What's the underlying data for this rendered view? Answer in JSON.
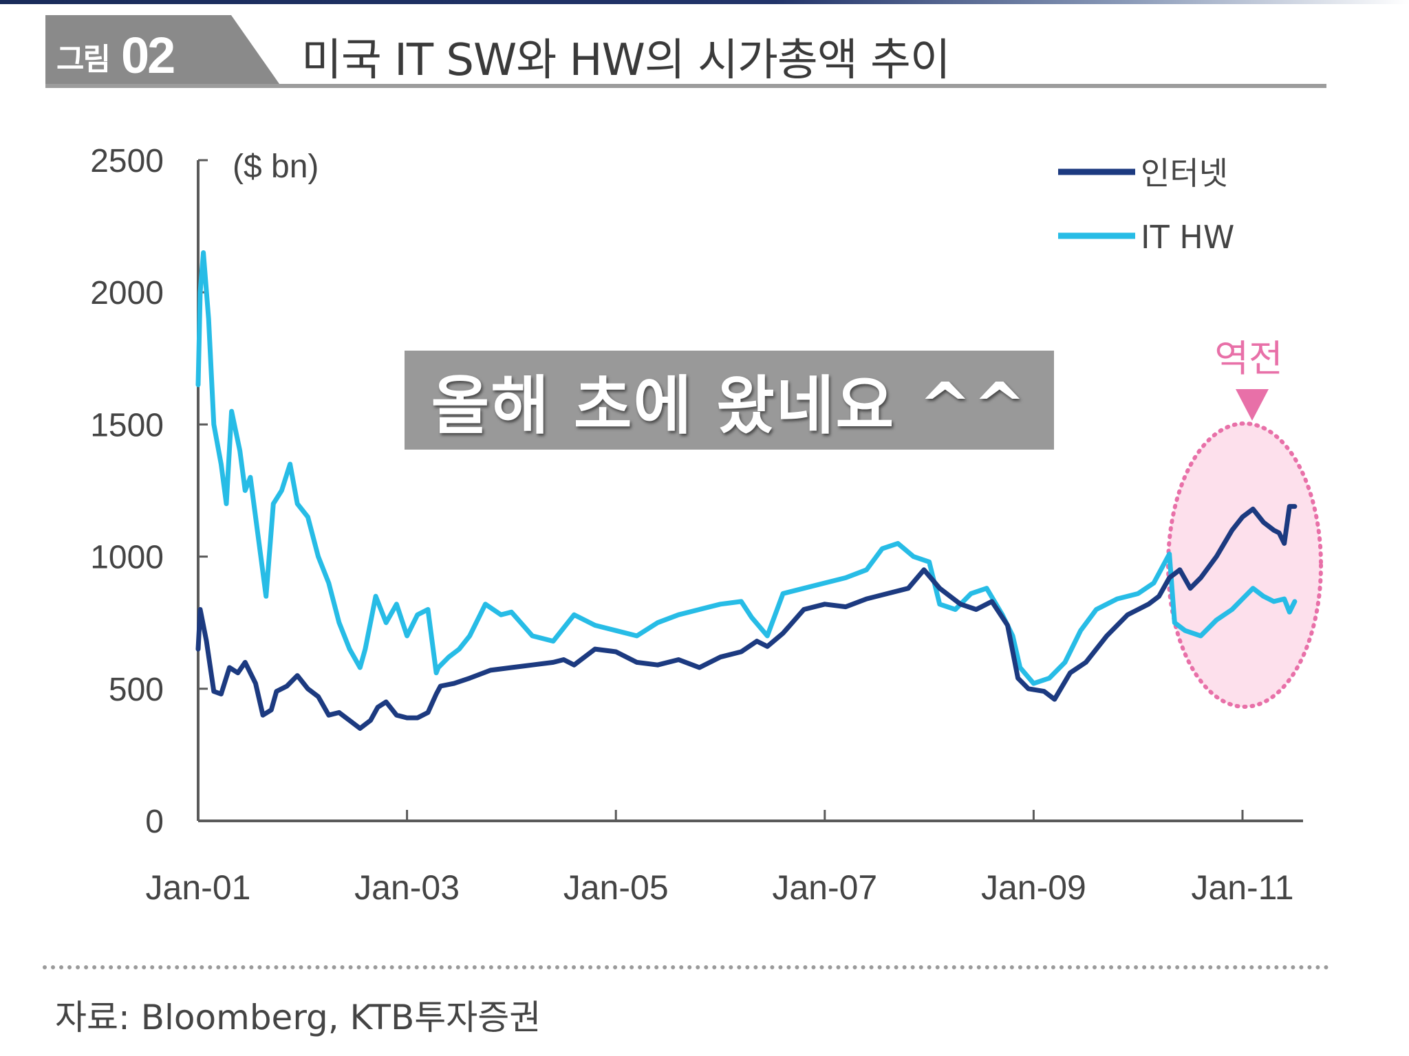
{
  "figure": {
    "label_kr": "그림",
    "label_num": "02",
    "title": "미국 IT SW와 HW의 시가총액 추이"
  },
  "overlay": {
    "text": "올해 초에 왔네요 ^^"
  },
  "source": "자료: Bloomberg, KTB투자증권",
  "colors": {
    "internet": "#1c3a80",
    "it_hw": "#27bce6",
    "highlight": "#e870a8",
    "highlight_fill": "#fde0ec",
    "axis": "#5a5a5a",
    "text": "#444444"
  },
  "chart_data": {
    "type": "line",
    "title": "미국 IT SW와 HW의 시가총액 추이",
    "ylabel": "($ bn)",
    "xlabel": "",
    "ylim": [
      0,
      2500
    ],
    "xlim": [
      2001.0,
      2011.55
    ],
    "yticks": [
      0,
      500,
      1000,
      1500,
      2000,
      2500
    ],
    "xticks": [
      {
        "value": 2001,
        "label": "Jan-01"
      },
      {
        "value": 2003,
        "label": "Jan-03"
      },
      {
        "value": 2005,
        "label": "Jan-05"
      },
      {
        "value": 2007,
        "label": "Jan-07"
      },
      {
        "value": 2009,
        "label": "Jan-09"
      },
      {
        "value": 2011,
        "label": "Jan-11"
      }
    ],
    "legend_position": "top-right",
    "series": [
      {
        "name": "인터넷",
        "color": "#1c3a80",
        "x": [
          2001.0,
          2001.02,
          2001.08,
          2001.15,
          2001.22,
          2001.3,
          2001.38,
          2001.45,
          2001.55,
          2001.62,
          2001.7,
          2001.75,
          2001.85,
          2001.95,
          2002.05,
          2002.15,
          2002.25,
          2002.35,
          2002.45,
          2002.55,
          2002.65,
          2002.72,
          2002.8,
          2002.9,
          2003.0,
          2003.1,
          2003.2,
          2003.28,
          2003.32,
          2003.45,
          2003.6,
          2003.8,
          2004.0,
          2004.2,
          2004.4,
          2004.5,
          2004.6,
          2004.8,
          2005.0,
          2005.2,
          2005.4,
          2005.6,
          2005.8,
          2006.0,
          2006.2,
          2006.35,
          2006.45,
          2006.6,
          2006.8,
          2007.0,
          2007.2,
          2007.4,
          2007.6,
          2007.8,
          2007.95,
          2008.1,
          2008.3,
          2008.45,
          2008.6,
          2008.75,
          2008.85,
          2008.95,
          2009.1,
          2009.2,
          2009.35,
          2009.5,
          2009.7,
          2009.9,
          2010.1,
          2010.2,
          2010.3,
          2010.4,
          2010.5,
          2010.6,
          2010.75,
          2010.9,
          2011.0,
          2011.1,
          2011.2,
          2011.3,
          2011.35,
          2011.4,
          2011.45,
          2011.5
        ],
        "values": [
          650,
          800,
          680,
          490,
          480,
          580,
          560,
          600,
          520,
          400,
          420,
          490,
          510,
          550,
          500,
          470,
          400,
          410,
          380,
          350,
          380,
          430,
          450,
          400,
          390,
          390,
          410,
          480,
          510,
          520,
          540,
          570,
          580,
          590,
          600,
          610,
          590,
          650,
          640,
          600,
          590,
          610,
          580,
          620,
          640,
          680,
          660,
          710,
          800,
          820,
          810,
          840,
          860,
          880,
          950,
          880,
          820,
          800,
          830,
          740,
          540,
          500,
          490,
          460,
          560,
          600,
          700,
          780,
          820,
          850,
          920,
          950,
          880,
          920,
          1000,
          1100,
          1150,
          1180,
          1130,
          1100,
          1090,
          1050,
          1190,
          1190
        ]
      },
      {
        "name": "IT HW",
        "color": "#27bce6",
        "x": [
          2001.0,
          2001.02,
          2001.05,
          2001.1,
          2001.15,
          2001.22,
          2001.27,
          2001.32,
          2001.4,
          2001.45,
          2001.5,
          2001.6,
          2001.65,
          2001.72,
          2001.8,
          2001.88,
          2001.95,
          2002.05,
          2002.15,
          2002.25,
          2002.35,
          2002.45,
          2002.55,
          2002.6,
          2002.7,
          2002.8,
          2002.9,
          2003.0,
          2003.1,
          2003.2,
          2003.28,
          2003.3,
          2003.4,
          2003.5,
          2003.6,
          2003.75,
          2003.9,
          2004.0,
          2004.2,
          2004.4,
          2004.6,
          2004.8,
          2005.0,
          2005.2,
          2005.4,
          2005.6,
          2005.8,
          2006.0,
          2006.2,
          2006.3,
          2006.45,
          2006.6,
          2006.8,
          2007.0,
          2007.2,
          2007.4,
          2007.55,
          2007.7,
          2007.85,
          2008.0,
          2008.1,
          2008.25,
          2008.4,
          2008.55,
          2008.7,
          2008.8,
          2008.87,
          2009.0,
          2009.15,
          2009.3,
          2009.45,
          2009.6,
          2009.8,
          2010.0,
          2010.15,
          2010.3,
          2010.35,
          2010.45,
          2010.6,
          2010.75,
          2010.9,
          2011.0,
          2011.1,
          2011.2,
          2011.3,
          2011.4,
          2011.45,
          2011.5
        ],
        "values": [
          1650,
          2000,
          2150,
          1900,
          1500,
          1350,
          1200,
          1550,
          1400,
          1250,
          1300,
          1000,
          850,
          1200,
          1250,
          1350,
          1200,
          1150,
          1000,
          900,
          750,
          650,
          580,
          650,
          850,
          750,
          820,
          700,
          780,
          800,
          560,
          580,
          620,
          650,
          700,
          820,
          780,
          790,
          700,
          680,
          780,
          740,
          720,
          700,
          750,
          780,
          800,
          820,
          830,
          770,
          700,
          860,
          880,
          900,
          920,
          950,
          1030,
          1050,
          1000,
          980,
          820,
          800,
          860,
          880,
          780,
          700,
          580,
          520,
          540,
          600,
          720,
          800,
          840,
          860,
          900,
          1010,
          750,
          720,
          700,
          760,
          800,
          840,
          880,
          850,
          830,
          840,
          790,
          830
        ]
      }
    ],
    "annotations": [
      {
        "text": "역전",
        "near_x": 2011.0,
        "style": "pink circle with downward arrow"
      }
    ]
  }
}
